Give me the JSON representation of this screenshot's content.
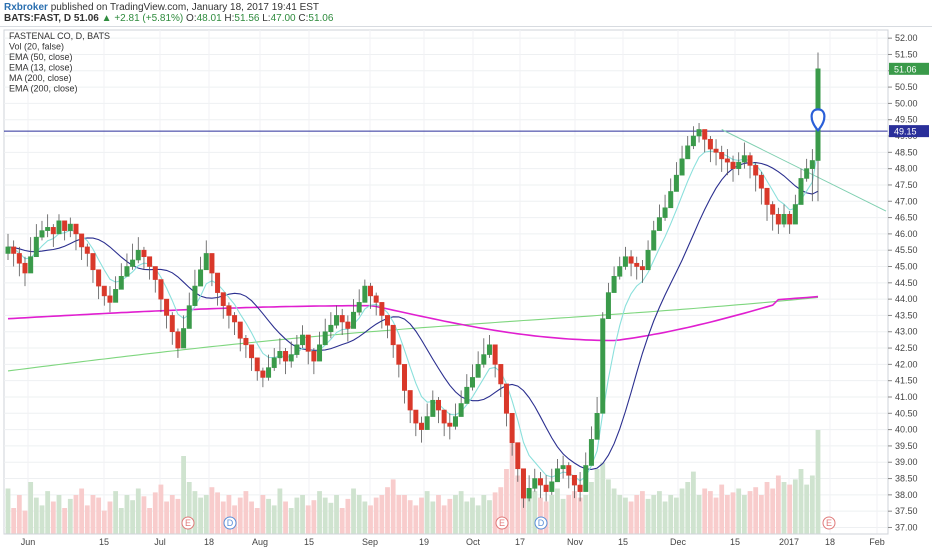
{
  "header": {
    "username": "Rxbroker",
    "published": "published on TradingView.com, January 18, 2017 19:41 EST",
    "symbol": "BATS:FAST, D",
    "last": "51.06",
    "change": "+2.81 (+5.81%)",
    "o_label": "O:",
    "o_value": "48.01",
    "h_label": "H:",
    "h_value": "51.56",
    "l_label": "L:",
    "l_value": "47.00",
    "c_label": "C:",
    "c_value": "51.06"
  },
  "colors": {
    "up": "#3a9a4a",
    "down": "#d9382a",
    "ema50": "#2b2f8f",
    "ema13": "#8be0dc",
    "ma200": "#7fd67f",
    "ema200": "#e01fd0",
    "hline": "#2a2f9a",
    "trend": "#7fcfb0",
    "vol_up": "#cfe3cf",
    "vol_down": "#f8cccc"
  },
  "indicators": [
    "FASTENAL CO, D, BATS",
    "Vol (20, false)",
    "EMA (50, close)",
    "EMA (13, close)",
    "MA (200, close)",
    "EMA (200, close)"
  ],
  "chart_data": {
    "type": "candlestick",
    "ylim": [
      36.8,
      52.25
    ],
    "y_ticks": [
      "37.00",
      "37.50",
      "38.00",
      "38.50",
      "39.00",
      "39.50",
      "40.00",
      "40.50",
      "41.00",
      "41.50",
      "42.00",
      "42.50",
      "43.00",
      "43.50",
      "44.00",
      "44.50",
      "45.00",
      "45.50",
      "46.00",
      "46.50",
      "47.00",
      "47.50",
      "48.00",
      "48.50",
      "49.00",
      "49.50",
      "50.00",
      "50.50",
      "51.00",
      "51.50",
      "52.00"
    ],
    "x_ticks": [
      "Jun",
      "15",
      "Jul",
      "18",
      "Aug",
      "15",
      "Sep",
      "19",
      "Oct",
      "17",
      "Nov",
      "15",
      "Dec",
      "15",
      "2017",
      "18",
      "Feb"
    ],
    "price_label": "51.06",
    "horizontal_level": {
      "value": 49.15,
      "label": "49.15"
    },
    "trendline": {
      "from": 49.2,
      "to": 46.7
    },
    "event_markers": [
      "E",
      "D",
      "E",
      "D",
      "E"
    ],
    "closes": [
      45.6,
      45.4,
      45.1,
      44.8,
      45.3,
      45.9,
      46.1,
      46.2,
      46.0,
      46.4,
      46.1,
      46.3,
      46.0,
      45.6,
      45.4,
      44.9,
      44.4,
      44.1,
      43.9,
      44.3,
      44.7,
      45.0,
      45.2,
      45.5,
      45.3,
      45.0,
      44.6,
      44.0,
      43.5,
      43.0,
      42.5,
      43.1,
      43.8,
      44.4,
      44.9,
      45.4,
      44.8,
      44.2,
      43.8,
      43.5,
      43.3,
      42.8,
      42.6,
      42.2,
      41.8,
      41.6,
      41.9,
      42.2,
      42.4,
      42.1,
      42.3,
      42.6,
      42.9,
      42.4,
      42.1,
      42.6,
      43.0,
      43.2,
      43.5,
      43.3,
      43.1,
      43.6,
      43.9,
      44.4,
      44.1,
      43.9,
      43.5,
      43.2,
      42.6,
      42.0,
      41.2,
      40.6,
      40.2,
      40.0,
      40.4,
      40.9,
      40.6,
      40.2,
      40.1,
      40.4,
      40.8,
      41.3,
      41.6,
      42.0,
      42.3,
      42.6,
      42.0,
      41.4,
      40.5,
      39.6,
      38.8,
      37.9,
      38.2,
      38.5,
      38.3,
      38.1,
      38.4,
      38.8,
      38.9,
      38.6,
      38.3,
      38.1,
      38.9,
      39.7,
      40.5,
      43.4,
      44.2,
      44.7,
      45.0,
      45.3,
      45.1,
      45.0,
      44.9,
      45.5,
      46.1,
      46.5,
      46.8,
      47.3,
      47.8,
      48.3,
      48.7,
      49.0,
      49.2,
      48.9,
      48.6,
      48.5,
      48.3,
      48.2,
      48.0,
      48.2,
      48.4,
      48.1,
      47.8,
      47.4,
      46.9,
      46.6,
      46.3,
      46.6,
      46.3,
      46.9,
      47.7,
      48.0,
      48.25,
      51.06
    ],
    "highs": [
      46.0,
      45.8,
      45.6,
      45.3,
      45.9,
      46.3,
      46.4,
      46.6,
      46.3,
      46.6,
      46.4,
      46.5,
      46.2,
      45.9,
      45.7,
      45.4,
      44.8,
      44.4,
      44.4,
      44.7,
      45.1,
      45.4,
      45.7,
      45.9,
      45.6,
      45.3,
      45.0,
      44.4,
      43.9,
      43.6,
      43.1,
      43.5,
      44.2,
      44.9,
      45.3,
      45.8,
      45.4,
      44.6,
      44.1,
      43.9,
      43.6,
      43.1,
      42.9,
      42.6,
      42.2,
      41.9,
      42.3,
      42.5,
      42.8,
      42.5,
      42.7,
      42.9,
      43.2,
      42.8,
      42.5,
      43.0,
      43.4,
      43.6,
      43.8,
      43.7,
      43.5,
      44.0,
      44.3,
      44.6,
      44.5,
      44.2,
      43.9,
      43.5,
      43.0,
      42.4,
      41.6,
      41.0,
      40.5,
      40.4,
      40.8,
      41.2,
      41.0,
      40.6,
      40.5,
      40.8,
      41.2,
      41.7,
      42.0,
      42.4,
      42.8,
      42.9,
      42.6,
      41.8,
      40.9,
      40.2,
      39.2,
      38.5,
      38.6,
      38.8,
      38.7,
      38.6,
      38.8,
      39.1,
      39.2,
      39.0,
      38.6,
      38.7,
      39.3,
      40.1,
      41.0,
      43.6,
      44.5,
      45.0,
      45.3,
      45.6,
      45.5,
      45.3,
      45.2,
      45.8,
      46.4,
      46.9,
      47.2,
      47.7,
      48.2,
      48.7,
      49.0,
      49.3,
      49.4,
      49.2,
      49.0,
      48.9,
      48.7,
      48.6,
      48.4,
      48.5,
      48.8,
      48.5,
      48.2,
      47.9,
      47.4,
      47.0,
      46.8,
      46.9,
      46.7,
      47.2,
      48.0,
      48.3,
      48.6,
      51.56
    ],
    "lows": [
      45.2,
      45.0,
      44.7,
      44.4,
      45.0,
      45.5,
      45.8,
      45.9,
      45.6,
      46.0,
      45.8,
      45.9,
      45.5,
      45.2,
      45.0,
      44.5,
      44.0,
      43.8,
      43.6,
      44.0,
      44.4,
      44.7,
      44.9,
      45.1,
      44.9,
      44.6,
      44.2,
      43.6,
      43.1,
      42.6,
      42.2,
      42.7,
      43.4,
      44.0,
      44.5,
      44.9,
      44.4,
      43.8,
      43.4,
      43.1,
      42.9,
      42.4,
      42.2,
      41.8,
      41.5,
      41.3,
      41.5,
      41.8,
      42.0,
      41.7,
      41.9,
      42.2,
      42.5,
      42.0,
      41.7,
      42.2,
      42.6,
      42.8,
      43.1,
      42.9,
      42.7,
      43.2,
      43.5,
      43.9,
      43.7,
      43.5,
      43.1,
      42.8,
      42.2,
      41.6,
      40.8,
      40.2,
      39.8,
      39.6,
      40.0,
      40.5,
      40.2,
      39.8,
      39.7,
      40.0,
      40.4,
      40.9,
      41.2,
      41.6,
      41.9,
      42.2,
      41.6,
      41.0,
      40.1,
      39.2,
      38.4,
      37.6,
      37.8,
      38.1,
      37.9,
      37.8,
      38.0,
      38.4,
      38.5,
      38.2,
      37.9,
      37.8,
      38.5,
      39.3,
      39.8,
      42.6,
      43.8,
      44.3,
      44.6,
      44.9,
      44.7,
      44.6,
      44.5,
      45.1,
      45.7,
      46.1,
      46.4,
      46.9,
      47.4,
      47.9,
      48.3,
      48.6,
      48.8,
      48.5,
      48.2,
      48.1,
      47.9,
      47.8,
      47.6,
      47.8,
      48.0,
      47.7,
      47.3,
      46.9,
      46.4,
      46.1,
      46.0,
      46.2,
      46.0,
      46.5,
      47.3,
      47.6,
      47.0,
      47.0
    ],
    "volumes": [
      0.35,
      0.2,
      0.3,
      0.18,
      0.4,
      0.28,
      0.22,
      0.33,
      0.25,
      0.3,
      0.2,
      0.27,
      0.3,
      0.35,
      0.22,
      0.3,
      0.28,
      0.18,
      0.25,
      0.33,
      0.2,
      0.3,
      0.26,
      0.35,
      0.29,
      0.2,
      0.32,
      0.38,
      0.25,
      0.3,
      0.27,
      0.6,
      0.4,
      0.33,
      0.28,
      0.3,
      0.36,
      0.32,
      0.25,
      0.3,
      0.22,
      0.28,
      0.33,
      0.25,
      0.2,
      0.3,
      0.27,
      0.22,
      0.35,
      0.25,
      0.2,
      0.28,
      0.3,
      0.22,
      0.26,
      0.33,
      0.28,
      0.24,
      0.3,
      0.2,
      0.27,
      0.35,
      0.3,
      0.25,
      0.22,
      0.28,
      0.3,
      0.36,
      0.42,
      0.3,
      0.3,
      0.26,
      0.22,
      0.28,
      0.33,
      0.25,
      0.3,
      0.22,
      0.27,
      0.3,
      0.33,
      0.25,
      0.28,
      0.22,
      0.3,
      0.26,
      0.32,
      0.36,
      0.5,
      0.75,
      0.45,
      0.4,
      0.3,
      0.33,
      0.28,
      0.25,
      0.3,
      0.35,
      0.27,
      0.3,
      0.33,
      0.28,
      0.3,
      0.4,
      0.5,
      0.55,
      0.42,
      0.35,
      0.3,
      0.28,
      0.25,
      0.3,
      0.33,
      0.27,
      0.3,
      0.33,
      0.25,
      0.3,
      0.28,
      0.35,
      0.4,
      0.48,
      0.3,
      0.35,
      0.33,
      0.28,
      0.38,
      0.3,
      0.32,
      0.35,
      0.3,
      0.33,
      0.36,
      0.3,
      0.4,
      0.35,
      0.45,
      0.4,
      0.38,
      0.42,
      0.5,
      0.38,
      0.45,
      0.8
    ]
  }
}
